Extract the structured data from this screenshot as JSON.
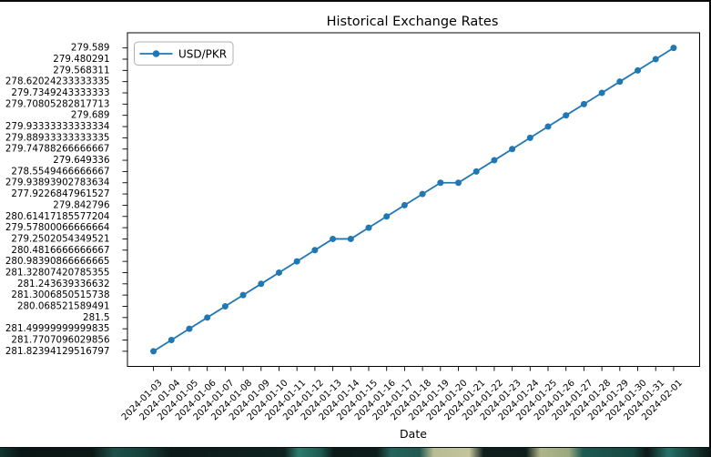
{
  "window": {
    "top_border_color": "#0a0a0a",
    "right_border_color": "#0a0a0a",
    "bottom_strip_description": "dark teal desktop sliver with khaki patches",
    "bottom_strip_colors": [
      "#0a1613",
      "#1e4f49",
      "#2c7a6e",
      "#b9bc93",
      "#0f1e1b",
      "#27706a"
    ]
  },
  "chart_data": {
    "type": "line",
    "title": "Historical Exchange Rates",
    "xlabel": "Date",
    "ylabel": "",
    "grid": false,
    "legend_position": "upper-left",
    "line_color": "#1f77b4",
    "marker": "circle",
    "y_axis_type": "categorical-strings-in-order-of-first-appearance",
    "x": [
      "2024-01-03",
      "2024-01-04",
      "2024-01-05",
      "2024-01-06",
      "2024-01-07",
      "2024-01-08",
      "2024-01-09",
      "2024-01-10",
      "2024-01-11",
      "2024-01-12",
      "2024-01-13",
      "2024-01-14",
      "2024-01-15",
      "2024-01-16",
      "2024-01-17",
      "2024-01-18",
      "2024-01-19",
      "2024-01-20",
      "2024-01-21",
      "2024-01-22",
      "2024-01-23",
      "2024-01-24",
      "2024-01-25",
      "2024-01-26",
      "2024-01-27",
      "2024-01-28",
      "2024-01-29",
      "2024-01-30",
      "2024-01-31",
      "2024-02-01"
    ],
    "series": [
      {
        "name": "USD/PKR",
        "values": [
          "281.82394129516797",
          "281.7707096029856",
          "281.49999999999835",
          "281.5",
          "280.068521589491",
          "281.3006850515738",
          "281.243639336632",
          "281.32807420785355",
          "280.98390866666665",
          "280.4816666666667",
          "279.2502054349521",
          "279.2502054349521",
          "279.57800066666664",
          "280.61417185577204",
          "279.842796",
          "277.9226847961527",
          "279.93893902783634",
          "279.93893902783634",
          "278.5549466666667",
          "279.649336",
          "279.74788266666667",
          "279.88933333333335",
          "279.93333333333334",
          "279.689",
          "279.70805282817713",
          "279.7349243333333",
          "278.62024233333335",
          "279.568311",
          "279.480291",
          "279.589"
        ]
      }
    ],
    "ytick_labels_top_to_bottom": [
      "279.589",
      "279.480291",
      "279.568311",
      "278.62024233333335",
      "279.7349243333333",
      "279.70805282817713",
      "279.689",
      "279.93333333333334",
      "279.88933333333335",
      "279.74788266666667",
      "279.649336",
      "278.5549466666667",
      "279.93893902783634",
      "277.9226847961527",
      "279.842796",
      "280.61417185577204",
      "279.57800066666664",
      "279.2502054349521",
      "280.4816666666667",
      "280.98390866666665",
      "281.32807420785355",
      "281.243639336632",
      "281.3006850515738",
      "280.068521589491",
      "281.5",
      "281.49999999999835",
      "281.7707096029856",
      "281.82394129516797"
    ]
  }
}
